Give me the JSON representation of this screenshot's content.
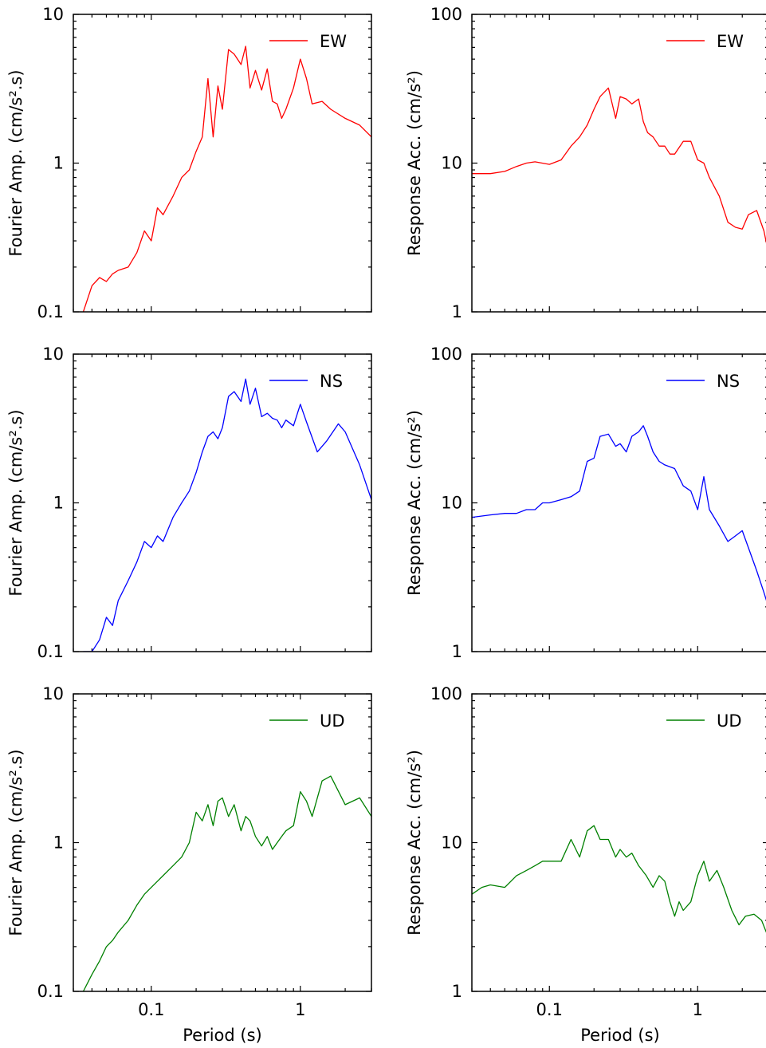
{
  "chart_data": [
    {
      "type": "line",
      "panel": "fourier-ew",
      "xscale": "log",
      "yscale": "log",
      "xlim": [
        0.03,
        3
      ],
      "ylim": [
        0.1,
        10
      ],
      "xlabel": "",
      "ylabel": "Fourier Amp. (cm/s².s)",
      "ytick_labels": [
        "0.1",
        "1",
        "10"
      ],
      "xtick_labels": [],
      "legend": "top-right",
      "grid": false,
      "series": [
        {
          "name": "EW",
          "color": "#ff0000",
          "x": [
            0.035,
            0.04,
            0.045,
            0.05,
            0.055,
            0.06,
            0.07,
            0.08,
            0.09,
            0.1,
            0.11,
            0.12,
            0.14,
            0.16,
            0.18,
            0.2,
            0.22,
            0.24,
            0.26,
            0.28,
            0.3,
            0.33,
            0.36,
            0.4,
            0.43,
            0.46,
            0.5,
            0.55,
            0.6,
            0.65,
            0.7,
            0.75,
            0.8,
            0.9,
            1.0,
            1.1,
            1.2,
            1.4,
            1.6,
            2.0,
            2.5,
            3.0
          ],
          "y": [
            0.1,
            0.15,
            0.17,
            0.16,
            0.18,
            0.19,
            0.2,
            0.25,
            0.35,
            0.3,
            0.5,
            0.45,
            0.6,
            0.8,
            0.9,
            1.2,
            1.5,
            3.7,
            1.5,
            3.3,
            2.3,
            5.8,
            5.4,
            4.6,
            6.1,
            3.2,
            4.2,
            3.1,
            4.3,
            2.6,
            2.5,
            2.0,
            2.3,
            3.2,
            5.0,
            3.7,
            2.5,
            2.6,
            2.3,
            2.0,
            1.8,
            1.5
          ]
        }
      ]
    },
    {
      "type": "line",
      "panel": "response-ew",
      "xscale": "log",
      "yscale": "log",
      "xlim": [
        0.03,
        3
      ],
      "ylim": [
        1,
        100
      ],
      "xlabel": "",
      "ylabel": "Response Acc. (cm/s²)",
      "ytick_labels": [
        "1",
        "10",
        "100"
      ],
      "xtick_labels": [],
      "legend": "top-right",
      "grid": false,
      "series": [
        {
          "name": "EW",
          "color": "#ff0000",
          "x": [
            0.03,
            0.04,
            0.05,
            0.06,
            0.07,
            0.08,
            0.1,
            0.12,
            0.14,
            0.16,
            0.18,
            0.2,
            0.22,
            0.25,
            0.28,
            0.3,
            0.33,
            0.36,
            0.4,
            0.43,
            0.46,
            0.5,
            0.55,
            0.6,
            0.65,
            0.7,
            0.8,
            0.9,
            1.0,
            1.1,
            1.2,
            1.4,
            1.6,
            1.8,
            2.0,
            2.2,
            2.5,
            2.8,
            3.0
          ],
          "y": [
            8.5,
            8.5,
            8.8,
            9.5,
            10,
            10.2,
            9.8,
            10.5,
            13,
            15,
            18,
            23,
            28,
            32,
            20,
            28,
            27,
            25,
            27,
            19,
            16,
            15,
            13,
            13,
            11.5,
            11.5,
            14,
            14,
            10.5,
            10,
            8,
            6,
            4,
            3.7,
            3.6,
            4.5,
            4.8,
            3.5,
            2.5
          ]
        }
      ]
    },
    {
      "type": "line",
      "panel": "fourier-ns",
      "xscale": "log",
      "yscale": "log",
      "xlim": [
        0.03,
        3
      ],
      "ylim": [
        0.1,
        10
      ],
      "xlabel": "",
      "ylabel": "Fourier Amp. (cm/s².s)",
      "ytick_labels": [
        "0.1",
        "1",
        "10"
      ],
      "xtick_labels": [],
      "legend": "top-right",
      "grid": false,
      "series": [
        {
          "name": "NS",
          "color": "#0000ff",
          "x": [
            0.035,
            0.04,
            0.045,
            0.05,
            0.055,
            0.06,
            0.07,
            0.08,
            0.09,
            0.1,
            0.11,
            0.12,
            0.14,
            0.16,
            0.18,
            0.2,
            0.22,
            0.24,
            0.26,
            0.28,
            0.3,
            0.33,
            0.36,
            0.4,
            0.43,
            0.46,
            0.5,
            0.55,
            0.6,
            0.65,
            0.7,
            0.75,
            0.8,
            0.9,
            1.0,
            1.1,
            1.3,
            1.5,
            1.8,
            2.0,
            2.5,
            3.0
          ],
          "y": [
            0.1,
            0.1,
            0.12,
            0.17,
            0.15,
            0.22,
            0.3,
            0.4,
            0.55,
            0.5,
            0.6,
            0.55,
            0.8,
            1.0,
            1.2,
            1.6,
            2.2,
            2.8,
            3.0,
            2.7,
            3.2,
            5.2,
            5.6,
            4.8,
            6.8,
            4.6,
            5.9,
            3.8,
            4.0,
            3.7,
            3.6,
            3.2,
            3.6,
            3.3,
            4.6,
            3.5,
            2.2,
            2.6,
            3.4,
            3.0,
            1.8,
            1.05
          ]
        }
      ]
    },
    {
      "type": "line",
      "panel": "response-ns",
      "xscale": "log",
      "yscale": "log",
      "xlim": [
        0.03,
        3
      ],
      "ylim": [
        1,
        100
      ],
      "xlabel": "",
      "ylabel": "Response Acc. (cm/s²)",
      "ytick_labels": [
        "1",
        "10",
        "100"
      ],
      "xtick_labels": [],
      "legend": "top-right",
      "grid": false,
      "series": [
        {
          "name": "NS",
          "color": "#0000ff",
          "x": [
            0.03,
            0.04,
            0.05,
            0.06,
            0.07,
            0.08,
            0.09,
            0.1,
            0.12,
            0.14,
            0.16,
            0.18,
            0.2,
            0.22,
            0.25,
            0.28,
            0.3,
            0.33,
            0.36,
            0.4,
            0.43,
            0.46,
            0.5,
            0.55,
            0.6,
            0.7,
            0.8,
            0.9,
            1.0,
            1.1,
            1.2,
            1.4,
            1.6,
            1.8,
            2.0,
            2.2,
            2.5,
            2.8,
            3.0
          ],
          "y": [
            8,
            8.3,
            8.5,
            8.5,
            9,
            9,
            10,
            10,
            10.5,
            11,
            12,
            19,
            20,
            28,
            29,
            24,
            25,
            22,
            28,
            30,
            33,
            28,
            22,
            19,
            18,
            17,
            13,
            12,
            9,
            15,
            9,
            7,
            5.5,
            6,
            6.5,
            5,
            3.5,
            2.5,
            2.0
          ]
        }
      ]
    },
    {
      "type": "line",
      "panel": "fourier-ud",
      "xscale": "log",
      "yscale": "log",
      "xlim": [
        0.03,
        3
      ],
      "ylim": [
        0.1,
        10
      ],
      "xlabel": "Period (s)",
      "ylabel": "Fourier Amp. (cm/s².s)",
      "ytick_labels": [
        "0.1",
        "1",
        "10"
      ],
      "xtick_labels": [
        "0.1",
        "1"
      ],
      "legend": "top-right",
      "grid": false,
      "series": [
        {
          "name": "UD",
          "color": "#008000",
          "x": [
            0.035,
            0.04,
            0.045,
            0.05,
            0.055,
            0.06,
            0.07,
            0.08,
            0.09,
            0.1,
            0.11,
            0.12,
            0.14,
            0.16,
            0.18,
            0.2,
            0.22,
            0.24,
            0.26,
            0.28,
            0.3,
            0.33,
            0.36,
            0.4,
            0.43,
            0.46,
            0.5,
            0.55,
            0.6,
            0.65,
            0.7,
            0.75,
            0.8,
            0.9,
            1.0,
            1.1,
            1.2,
            1.4,
            1.6,
            2.0,
            2.5,
            3.0
          ],
          "y": [
            0.1,
            0.13,
            0.16,
            0.2,
            0.22,
            0.25,
            0.3,
            0.38,
            0.45,
            0.5,
            0.55,
            0.6,
            0.7,
            0.8,
            1.0,
            1.6,
            1.4,
            1.8,
            1.3,
            1.9,
            2.0,
            1.5,
            1.8,
            1.2,
            1.5,
            1.4,
            1.1,
            0.95,
            1.1,
            0.9,
            1.0,
            1.1,
            1.2,
            1.3,
            2.2,
            1.9,
            1.5,
            2.6,
            2.8,
            1.8,
            2.0,
            1.5
          ]
        }
      ]
    },
    {
      "type": "line",
      "panel": "response-ud",
      "xscale": "log",
      "yscale": "log",
      "xlim": [
        0.03,
        3
      ],
      "ylim": [
        1,
        100
      ],
      "xlabel": "Period (s)",
      "ylabel": "Response Acc. (cm/s²)",
      "ytick_labels": [
        "1",
        "10",
        "100"
      ],
      "xtick_labels": [
        "0.1",
        "1"
      ],
      "legend": "top-right",
      "grid": false,
      "series": [
        {
          "name": "UD",
          "color": "#008000",
          "x": [
            0.03,
            0.035,
            0.04,
            0.05,
            0.06,
            0.07,
            0.08,
            0.09,
            0.1,
            0.12,
            0.14,
            0.16,
            0.18,
            0.2,
            0.22,
            0.25,
            0.28,
            0.3,
            0.33,
            0.36,
            0.4,
            0.45,
            0.5,
            0.55,
            0.6,
            0.65,
            0.7,
            0.75,
            0.8,
            0.9,
            1.0,
            1.1,
            1.2,
            1.35,
            1.5,
            1.7,
            1.9,
            2.1,
            2.4,
            2.7,
            3.0
          ],
          "y": [
            4.5,
            5.0,
            5.2,
            5.0,
            6.0,
            6.5,
            7.0,
            7.5,
            7.5,
            7.5,
            10.5,
            8.0,
            12.0,
            13.0,
            10.5,
            10.5,
            8.0,
            9.0,
            8.0,
            8.5,
            7.0,
            6.0,
            5.0,
            6.0,
            5.5,
            4.0,
            3.2,
            4.0,
            3.5,
            4.0,
            6.0,
            7.5,
            5.5,
            6.5,
            5.0,
            3.5,
            2.8,
            3.2,
            3.3,
            3.0,
            2.3
          ]
        }
      ]
    }
  ]
}
